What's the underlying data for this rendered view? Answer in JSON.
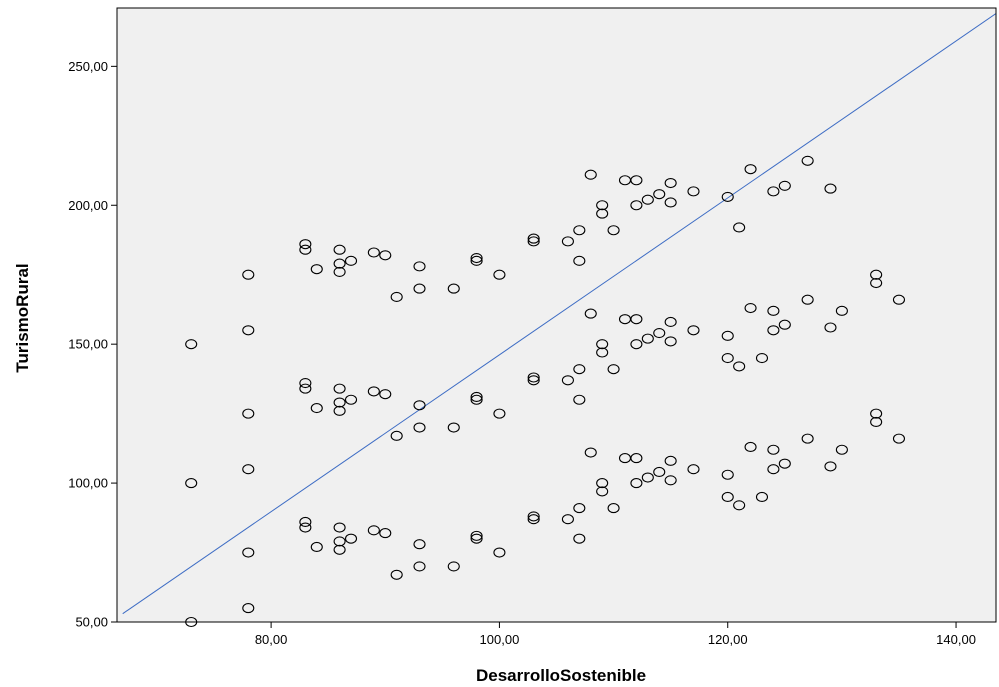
{
  "chart_data": {
    "type": "scatter",
    "xlabel": "DesarrolloSostenible",
    "ylabel": "TurismoRural",
    "xlim": [
      66.5,
      143.5
    ],
    "ylim": [
      50,
      271
    ],
    "x_ticks": [
      80,
      100,
      120,
      140
    ],
    "y_ticks": [
      50,
      100,
      150,
      200,
      250
    ],
    "x_tick_labels": [
      "80,00",
      "100,00",
      "120,00",
      "140,00"
    ],
    "y_tick_labels": [
      "50,00",
      "100,00",
      "150,00",
      "200,00",
      "250,00"
    ],
    "grid": false,
    "legend": "none",
    "colors": {
      "plot_background": "#f0f0f0",
      "marker_edge": "#000000",
      "fit_line": "#3d6cc4"
    },
    "fit_line": {
      "x": [
        67,
        143.5
      ],
      "y": [
        53,
        269
      ]
    },
    "points": [
      [
        73,
        50
      ],
      [
        73,
        100
      ],
      [
        73,
        150
      ],
      [
        78,
        55
      ],
      [
        78,
        75
      ],
      [
        78,
        105
      ],
      [
        78,
        125
      ],
      [
        78,
        155
      ],
      [
        78,
        175
      ],
      [
        83,
        84
      ],
      [
        83,
        86
      ],
      [
        83,
        134
      ],
      [
        83,
        136
      ],
      [
        83,
        184
      ],
      [
        83,
        186
      ],
      [
        84,
        77
      ],
      [
        84,
        127
      ],
      [
        84,
        177
      ],
      [
        86,
        76
      ],
      [
        86,
        79
      ],
      [
        86,
        84
      ],
      [
        86,
        126
      ],
      [
        86,
        129
      ],
      [
        86,
        134
      ],
      [
        86,
        176
      ],
      [
        86,
        179
      ],
      [
        86,
        184
      ],
      [
        87,
        80
      ],
      [
        87,
        130
      ],
      [
        87,
        180
      ],
      [
        89,
        83
      ],
      [
        89,
        133
      ],
      [
        89,
        183
      ],
      [
        90,
        82
      ],
      [
        90,
        132
      ],
      [
        90,
        182
      ],
      [
        91,
        67
      ],
      [
        91,
        117
      ],
      [
        91,
        167
      ],
      [
        93,
        70
      ],
      [
        93,
        78
      ],
      [
        93,
        120
      ],
      [
        93,
        128
      ],
      [
        93,
        170
      ],
      [
        93,
        178
      ],
      [
        96,
        70
      ],
      [
        96,
        120
      ],
      [
        96,
        170
      ],
      [
        98,
        80
      ],
      [
        98,
        81
      ],
      [
        98,
        130
      ],
      [
        98,
        131
      ],
      [
        98,
        180
      ],
      [
        98,
        181
      ],
      [
        100,
        75
      ],
      [
        100,
        125
      ],
      [
        100,
        175
      ],
      [
        103,
        87
      ],
      [
        103,
        88
      ],
      [
        103,
        137
      ],
      [
        103,
        138
      ],
      [
        103,
        187
      ],
      [
        103,
        188
      ],
      [
        106,
        87
      ],
      [
        106,
        137
      ],
      [
        106,
        187
      ],
      [
        107,
        80
      ],
      [
        107,
        91
      ],
      [
        107,
        130
      ],
      [
        107,
        141
      ],
      [
        107,
        180
      ],
      [
        107,
        191
      ],
      [
        108,
        111
      ],
      [
        108,
        161
      ],
      [
        108,
        211
      ],
      [
        109,
        97
      ],
      [
        109,
        100
      ],
      [
        109,
        147
      ],
      [
        109,
        150
      ],
      [
        109,
        197
      ],
      [
        109,
        200
      ],
      [
        110,
        91
      ],
      [
        110,
        141
      ],
      [
        110,
        191
      ],
      [
        111,
        109
      ],
      [
        111,
        159
      ],
      [
        111,
        209
      ],
      [
        112,
        100
      ],
      [
        112,
        109
      ],
      [
        112,
        150
      ],
      [
        112,
        159
      ],
      [
        112,
        200
      ],
      [
        112,
        209
      ],
      [
        113,
        102
      ],
      [
        113,
        152
      ],
      [
        113,
        202
      ],
      [
        114,
        104
      ],
      [
        114,
        154
      ],
      [
        114,
        204
      ],
      [
        115,
        101
      ],
      [
        115,
        108
      ],
      [
        115,
        151
      ],
      [
        115,
        158
      ],
      [
        115,
        201
      ],
      [
        115,
        208
      ],
      [
        117,
        105
      ],
      [
        117,
        155
      ],
      [
        117,
        205
      ],
      [
        120,
        95
      ],
      [
        120,
        103
      ],
      [
        120,
        145
      ],
      [
        120,
        153
      ],
      [
        120,
        203
      ],
      [
        121,
        92
      ],
      [
        121,
        142
      ],
      [
        121,
        192
      ],
      [
        122,
        113
      ],
      [
        122,
        163
      ],
      [
        122,
        213
      ],
      [
        123,
        95
      ],
      [
        123,
        145
      ],
      [
        124,
        105
      ],
      [
        124,
        112
      ],
      [
        124,
        155
      ],
      [
        124,
        162
      ],
      [
        124,
        205
      ],
      [
        125,
        107
      ],
      [
        125,
        157
      ],
      [
        125,
        207
      ],
      [
        127,
        116
      ],
      [
        127,
        166
      ],
      [
        127,
        216
      ],
      [
        129,
        106
      ],
      [
        129,
        156
      ],
      [
        129,
        206
      ],
      [
        130,
        112
      ],
      [
        130,
        162
      ],
      [
        133,
        122
      ],
      [
        133,
        125
      ],
      [
        133,
        172
      ],
      [
        133,
        175
      ],
      [
        135,
        116
      ],
      [
        135,
        166
      ]
    ]
  }
}
